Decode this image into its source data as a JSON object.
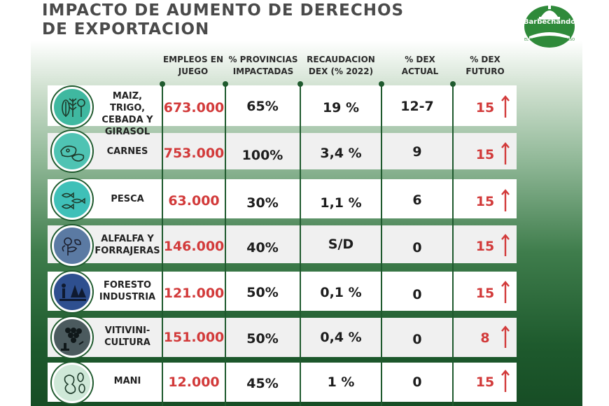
{
  "title_line1": "IMPACTO DE AUMENTO DE DERECHOS",
  "title_line2": "DE EXPORTACION",
  "logo": {
    "name": "Barbechando",
    "tagline": "EL CAMPO EN EL CONGRESO",
    "brand_color": "#2f8a3a"
  },
  "columns": {
    "empleos": "EMPLEOS EN JUEGO",
    "provincias": "% PROVINCIAS IMPACTADAS",
    "recaudacion": "RECAUDACION DEX (% 2022)",
    "dex_actual": "% DEX ACTUAL",
    "dex_futuro": "% DEX FUTURO"
  },
  "rows": [
    {
      "icon": "grains-icon",
      "color": "#3fb8a0",
      "category": "MAIZ, TRIGO, CEBADA Y GIRASOL",
      "empleos": "673.000",
      "provincias": "65%",
      "recaudacion": "19 %",
      "dex_actual": "12-7",
      "dex_futuro": "15"
    },
    {
      "icon": "meat-icon",
      "color": "#4fc3b3",
      "category": "CARNES",
      "empleos": "753.000",
      "provincias": "100%",
      "recaudacion": "3,4 %",
      "dex_actual": "9",
      "dex_futuro": "15"
    },
    {
      "icon": "fish-icon",
      "color": "#3fc0b8",
      "category": "PESCA",
      "empleos": "63.000",
      "provincias": "30%",
      "recaudacion": "1,1 %",
      "dex_actual": "6",
      "dex_futuro": "15"
    },
    {
      "icon": "alfalfa-icon",
      "color": "#5b7aa3",
      "category": "ALFALFA Y FORRAJERAS",
      "empleos": "146.000",
      "provincias": "40%",
      "recaudacion": "S/D",
      "dex_actual": "0",
      "dex_futuro": "15"
    },
    {
      "icon": "forest-icon",
      "color": "#2e4f8f",
      "category": "FORESTO INDUSTRIA",
      "empleos": "121.000",
      "provincias": "50%",
      "recaudacion": "0,1 %",
      "dex_actual": "0",
      "dex_futuro": "15"
    },
    {
      "icon": "grapes-icon",
      "color": "#4b5a5e",
      "category": "VITIVINI- CULTURA",
      "empleos": "151.000",
      "provincias": "50%",
      "recaudacion": "0,4 %",
      "dex_actual": "0",
      "dex_futuro": "8"
    },
    {
      "icon": "peanut-icon",
      "color": "#cfe8d8",
      "category": "MANI",
      "empleos": "12.000",
      "provincias": "45%",
      "recaudacion": "1 %",
      "dex_actual": "0",
      "dex_futuro": "15"
    }
  ]
}
